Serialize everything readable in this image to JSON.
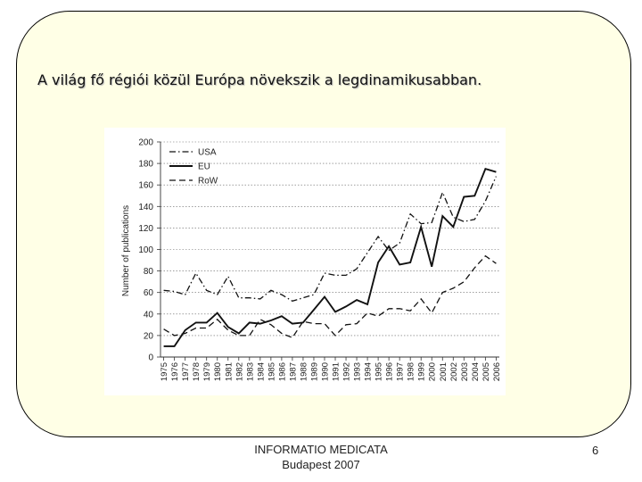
{
  "slide": {
    "title": "A világ fő régiói közül Európa növekszik a legdinamikusabban.",
    "footer_line1": "INFORMATIO MEDICATA",
    "footer_line2": "Budapest 2007",
    "page_number": "6"
  },
  "chart_data": {
    "type": "line",
    "title": "",
    "xlabel": "",
    "ylabel": "Number of publications",
    "ylim": [
      0,
      200
    ],
    "yticks": [
      0,
      20,
      40,
      60,
      80,
      100,
      120,
      140,
      160,
      180,
      200
    ],
    "grid": true,
    "legend_position": "top-left",
    "x": [
      "1975",
      "1976",
      "1977",
      "1978",
      "1979",
      "1980",
      "1981",
      "1982",
      "1983",
      "1984",
      "1985",
      "1986",
      "1987",
      "1988",
      "1989",
      "1990",
      "1991",
      "1992",
      "1993",
      "1994",
      "1995",
      "1996",
      "1997",
      "1998",
      "1999",
      "2000",
      "2001",
      "2002",
      "2003",
      "2004",
      "2005",
      "2006"
    ],
    "series": [
      {
        "name": "USA",
        "style": "dashdot",
        "values": [
          62,
          61,
          58,
          78,
          62,
          58,
          75,
          55,
          55,
          54,
          62,
          58,
          52,
          55,
          58,
          78,
          76,
          76,
          82,
          97,
          112,
          99,
          106,
          133,
          124,
          125,
          153,
          130,
          126,
          128,
          145,
          168
        ]
      },
      {
        "name": "EU",
        "style": "solid",
        "values": [
          10,
          10,
          25,
          32,
          32,
          41,
          28,
          22,
          32,
          31,
          34,
          38,
          31,
          32,
          44,
          56,
          42,
          47,
          53,
          49,
          88,
          103,
          86,
          88,
          121,
          84,
          131,
          121,
          149,
          150,
          175,
          172
        ]
      },
      {
        "name": "RoW",
        "style": "dashed",
        "values": [
          26,
          20,
          22,
          27,
          27,
          35,
          25,
          20,
          20,
          35,
          30,
          22,
          18,
          33,
          31,
          31,
          20,
          30,
          31,
          41,
          38,
          45,
          45,
          43,
          54,
          41,
          60,
          64,
          70,
          83,
          94,
          87
        ]
      }
    ],
    "legend": [
      "USA",
      "EU",
      "RoW"
    ]
  }
}
